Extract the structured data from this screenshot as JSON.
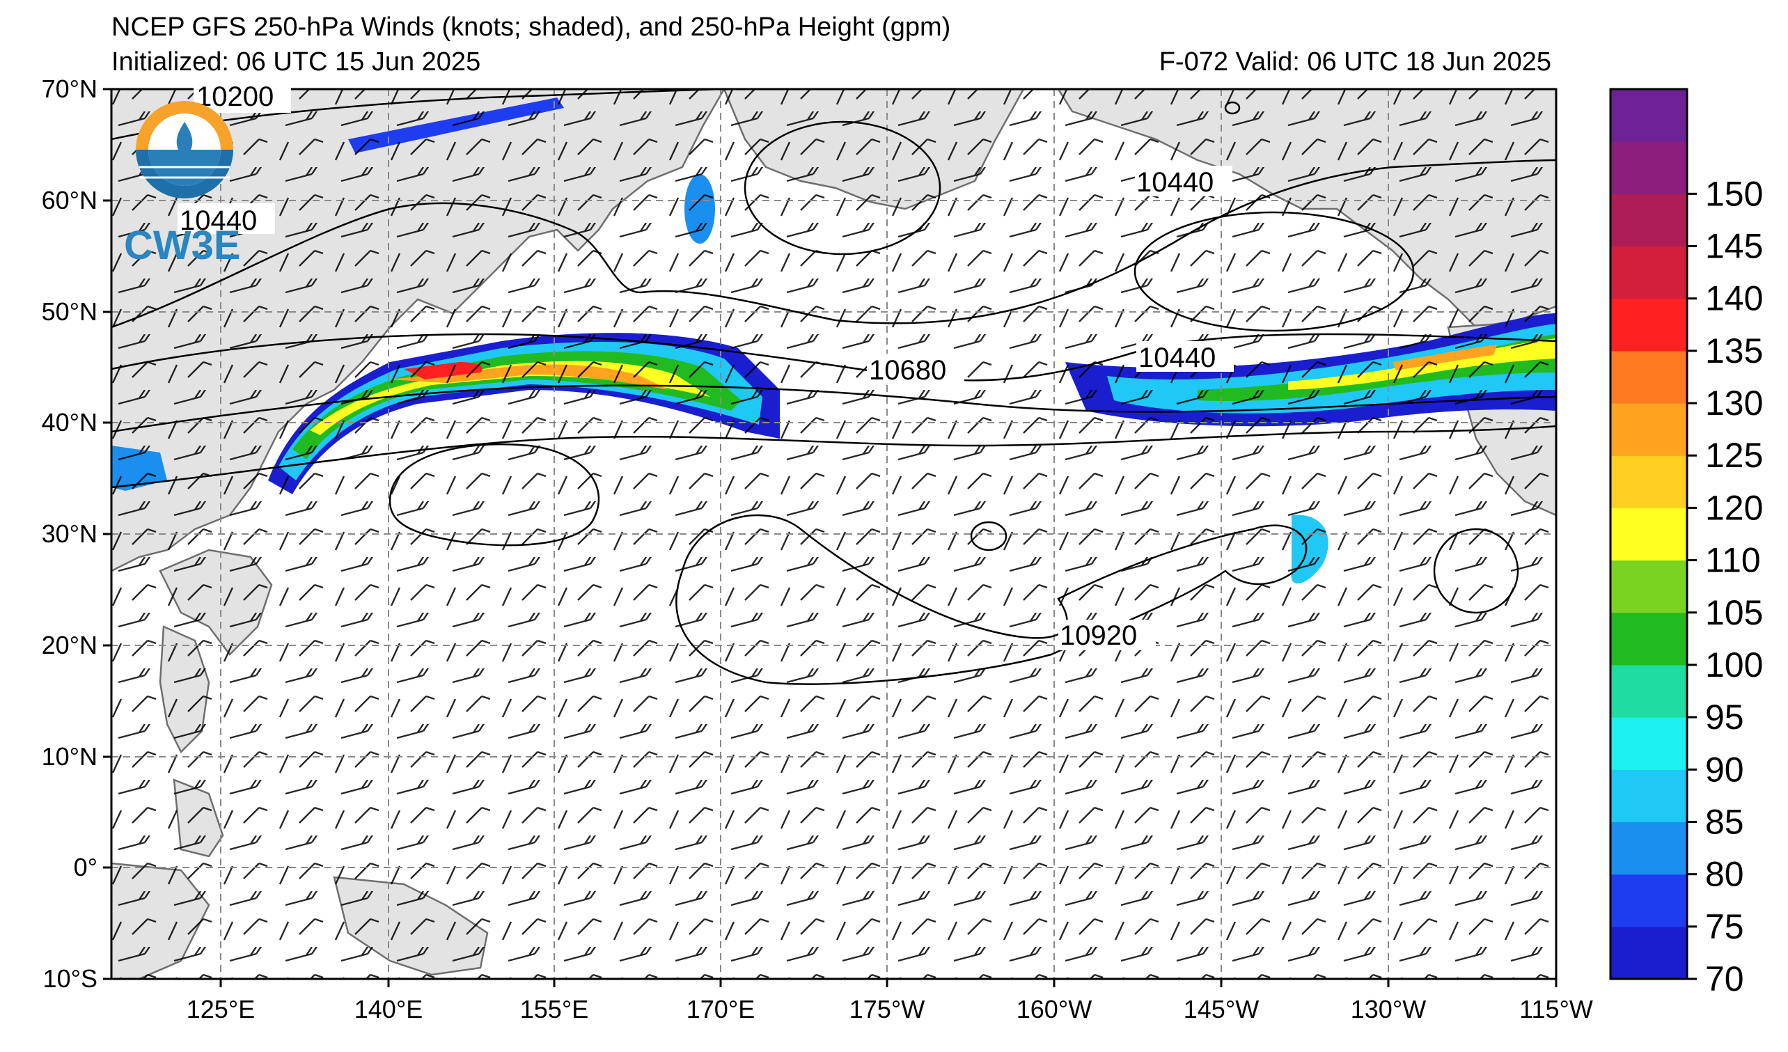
{
  "title_line1": "NCEP GFS 250-hPa Winds (knots; shaded), and 250-hPa Height (gpm)",
  "title_init": "Initialized: 06 UTC 15 Jun 2025",
  "title_valid": "F-072  Valid: 06 UTC 18 Jun 2025",
  "logo_text": "CW3E",
  "lat_labels": [
    "70°N",
    "60°N",
    "50°N",
    "40°N",
    "30°N",
    "20°N",
    "10°N",
    "0°",
    "10°S"
  ],
  "lon_labels": [
    "125°E",
    "140°E",
    "155°E",
    "170°E",
    "175°W",
    "160°W",
    "145°W",
    "130°W",
    "115°W"
  ],
  "contour_labels": [
    "10200",
    "10440",
    "10440",
    "10680",
    "10440",
    "10920"
  ],
  "colorbar": {
    "ticks": [
      "70",
      "75",
      "80",
      "85",
      "90",
      "95",
      "100",
      "105",
      "110",
      "120",
      "125",
      "130",
      "135",
      "140",
      "145",
      "150"
    ],
    "colors": [
      "#1b1ecf",
      "#1f3df0",
      "#1a8ff0",
      "#20c8f5",
      "#1df0f0",
      "#1fdca0",
      "#21bb21",
      "#7bd321",
      "#ffff21",
      "#ffcf21",
      "#ffa321",
      "#ff7a21",
      "#ff2121",
      "#d21f3c",
      "#ae1d55",
      "#8c1e7e",
      "#6e2196"
    ]
  }
}
